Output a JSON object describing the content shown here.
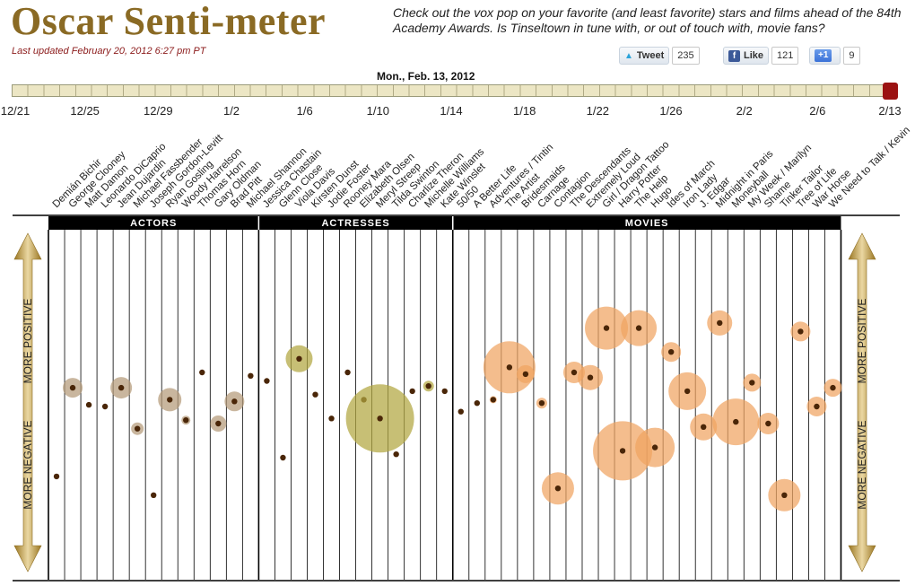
{
  "header": {
    "title": "Oscar Senti-meter",
    "updated": "Last updated February 20, 2012 6:27 pm PT",
    "intro": "Check out the vox pop on your favorite (and least favorite) stars and films ahead of the 84th Academy Awards. Is Tinseltown in tune with, or out of touch with, movie fans?"
  },
  "share": {
    "tweet_label": "Tweet",
    "tweet_count": "235",
    "like_label": "Like",
    "like_count": "121",
    "plus_label": "+1",
    "plus_count": "9"
  },
  "timeline": {
    "current_date": "Mon., Feb. 13, 2012",
    "ticks": [
      "12/21",
      "12/25",
      "12/29",
      "1/2",
      "1/6",
      "1/10",
      "1/14",
      "1/18",
      "1/22",
      "1/26",
      "2/2",
      "2/6",
      "2/13"
    ],
    "tick_positions": [
      0,
      4,
      8,
      12,
      16,
      20,
      24,
      28,
      32,
      36,
      40,
      44,
      48
    ],
    "total_days": 48,
    "current_position": 48
  },
  "chart_data": {
    "type": "scatter",
    "sections": [
      "ACTORS",
      "ACTRESSES",
      "MOVIES"
    ],
    "y_axis": {
      "top_label": "MORE POSITIVE",
      "bottom_label": "MORE NEGATIVE"
    },
    "colors": {
      "actors": "#b49a78",
      "actresses": "#b2a640",
      "movies": "#f0a461",
      "dot": "#4a2608"
    },
    "size_range": [
      0,
      40
    ],
    "sentiment_range": [
      -1,
      1
    ],
    "categories": [
      {
        "name": "Demián Bichir",
        "section": "ACTORS",
        "sentiment": -0.41,
        "size": 0
      },
      {
        "name": "George Clooney",
        "section": "ACTORS",
        "sentiment": 0.11,
        "size": 11
      },
      {
        "name": "Matt Damon",
        "section": "ACTORS",
        "sentiment": 0.01,
        "size": 0
      },
      {
        "name": "Leonardo DiCaprio",
        "section": "ACTORS",
        "sentiment": 0.0,
        "size": 0
      },
      {
        "name": "Jean Dujardin",
        "section": "ACTORS",
        "sentiment": 0.11,
        "size": 12
      },
      {
        "name": "Michael Fassbender",
        "section": "ACTORS",
        "sentiment": -0.13,
        "size": 7
      },
      {
        "name": "Joseph Gordon-Levitt",
        "section": "ACTORS",
        "sentiment": -0.52,
        "size": 0
      },
      {
        "name": "Ryan Gosling",
        "section": "ACTORS",
        "sentiment": 0.04,
        "size": 13
      },
      {
        "name": "Woody Harrelson",
        "section": "ACTORS",
        "sentiment": -0.08,
        "size": 5
      },
      {
        "name": "Thomas Horn",
        "section": "ACTORS",
        "sentiment": 0.2,
        "size": 0
      },
      {
        "name": "Gary Oldman",
        "section": "ACTORS",
        "sentiment": -0.1,
        "size": 9
      },
      {
        "name": "Brad Pitt",
        "section": "ACTORS",
        "sentiment": 0.03,
        "size": 11
      },
      {
        "name": "Michael Shannon",
        "section": "ACTORS",
        "sentiment": 0.18,
        "size": 3
      },
      {
        "name": "Jessica Chastain",
        "section": "ACTRESSES",
        "sentiment": 0.15,
        "size": 0
      },
      {
        "name": "Glenn Close",
        "section": "ACTRESSES",
        "sentiment": -0.3,
        "size": 0
      },
      {
        "name": "Viola Davis",
        "section": "ACTRESSES",
        "sentiment": 0.28,
        "size": 15
      },
      {
        "name": "Kirsten Dunst",
        "section": "ACTRESSES",
        "sentiment": 0.07,
        "size": 0
      },
      {
        "name": "Jodie Foster",
        "section": "ACTRESSES",
        "sentiment": -0.07,
        "size": 0
      },
      {
        "name": "Rooney Mara",
        "section": "ACTRESSES",
        "sentiment": 0.2,
        "size": 3
      },
      {
        "name": "Elizabeth Olsen",
        "section": "ACTRESSES",
        "sentiment": 0.04,
        "size": 0
      },
      {
        "name": "Meryl Streep",
        "section": "ACTRESSES",
        "sentiment": -0.07,
        "size": 38
      },
      {
        "name": "Tilda Swinton",
        "section": "ACTRESSES",
        "sentiment": -0.28,
        "size": 0
      },
      {
        "name": "Charlize Theron",
        "section": "ACTRESSES",
        "sentiment": 0.09,
        "size": 0
      },
      {
        "name": "Michelle Williams",
        "section": "ACTRESSES",
        "sentiment": 0.12,
        "size": 6
      },
      {
        "name": "Kate Winslet",
        "section": "ACTRESSES",
        "sentiment": 0.09,
        "size": 0
      },
      {
        "name": "50/50",
        "section": "MOVIES",
        "sentiment": -0.03,
        "size": 0
      },
      {
        "name": "A Better Life",
        "section": "MOVIES",
        "sentiment": 0.02,
        "size": 0
      },
      {
        "name": "Adventures / Tintin",
        "section": "MOVIES",
        "sentiment": 0.04,
        "size": 4
      },
      {
        "name": "The Artist",
        "section": "MOVIES",
        "sentiment": 0.23,
        "size": 29
      },
      {
        "name": "Bridesmaids",
        "section": "MOVIES",
        "sentiment": 0.19,
        "size": 10
      },
      {
        "name": "Carnage",
        "section": "MOVIES",
        "sentiment": 0.02,
        "size": 6
      },
      {
        "name": "Contagion",
        "section": "MOVIES",
        "sentiment": -0.48,
        "size": 18
      },
      {
        "name": "The Descendants",
        "section": "MOVIES",
        "sentiment": 0.2,
        "size": 12
      },
      {
        "name": "Extremely Loud",
        "section": "MOVIES",
        "sentiment": 0.17,
        "size": 14
      },
      {
        "name": "Girl / Dragon Tattoo",
        "section": "MOVIES",
        "sentiment": 0.46,
        "size": 24
      },
      {
        "name": "Harry Potter",
        "section": "MOVIES",
        "sentiment": -0.26,
        "size": 33
      },
      {
        "name": "The Help",
        "section": "MOVIES",
        "sentiment": 0.46,
        "size": 20
      },
      {
        "name": "Hugo",
        "section": "MOVIES",
        "sentiment": -0.24,
        "size": 22
      },
      {
        "name": "Ides of March",
        "section": "MOVIES",
        "sentiment": 0.32,
        "size": 11
      },
      {
        "name": "Iron Lady",
        "section": "MOVIES",
        "sentiment": 0.09,
        "size": 21
      },
      {
        "name": "J. Edgar",
        "section": "MOVIES",
        "sentiment": -0.12,
        "size": 15
      },
      {
        "name": "Midnight in Paris",
        "section": "MOVIES",
        "sentiment": 0.49,
        "size": 14
      },
      {
        "name": "Moneyball",
        "section": "MOVIES",
        "sentiment": -0.09,
        "size": 26
      },
      {
        "name": "My Week / Marilyn",
        "section": "MOVIES",
        "sentiment": 0.14,
        "size": 10
      },
      {
        "name": "Shame",
        "section": "MOVIES",
        "sentiment": -0.1,
        "size": 12
      },
      {
        "name": "Tinker Tailor",
        "section": "MOVIES",
        "sentiment": -0.52,
        "size": 18
      },
      {
        "name": "Tree of Life",
        "section": "MOVIES",
        "sentiment": 0.44,
        "size": 11
      },
      {
        "name": "War Horse",
        "section": "MOVIES",
        "sentiment": 0.0,
        "size": 11
      },
      {
        "name": "We Need to Talk / Kevin",
        "section": "MOVIES",
        "sentiment": 0.11,
        "size": 10
      }
    ]
  }
}
